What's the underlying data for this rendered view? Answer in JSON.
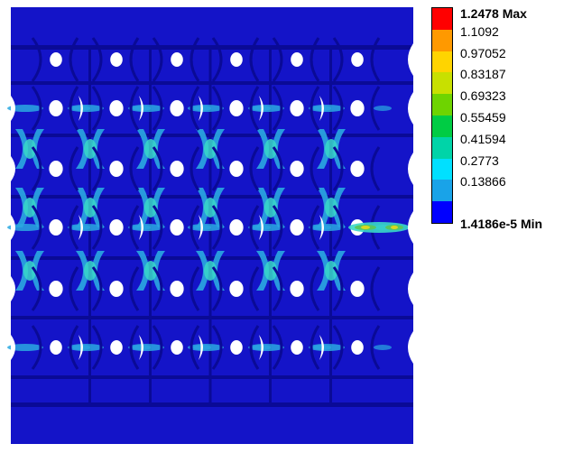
{
  "legend": {
    "max_label": "1.2478 Max",
    "min_label": "1.4186e-5 Min",
    "levels": [
      "1.1092",
      "0.97052",
      "0.83187",
      "0.69323",
      "0.55459",
      "0.41594",
      "0.2773",
      "0.13866"
    ],
    "colors": [
      "#ff0000",
      "#ff9900",
      "#ffd400",
      "#c8e000",
      "#6ed400",
      "#00cc44",
      "#00d4a8",
      "#00e0ff",
      "#19a3e8",
      "#0000ff"
    ]
  },
  "model": {
    "colors": {
      "base": "#1414c8",
      "dark": "#0a0a96",
      "band": "#1a1af0",
      "light_blue": "#2aa8e0",
      "cyan": "#38d8c8",
      "green": "#58c860",
      "yellow": "#d8d820",
      "hole": "#ffffff"
    },
    "hole_columns": 6,
    "hole_rows": 6
  }
}
